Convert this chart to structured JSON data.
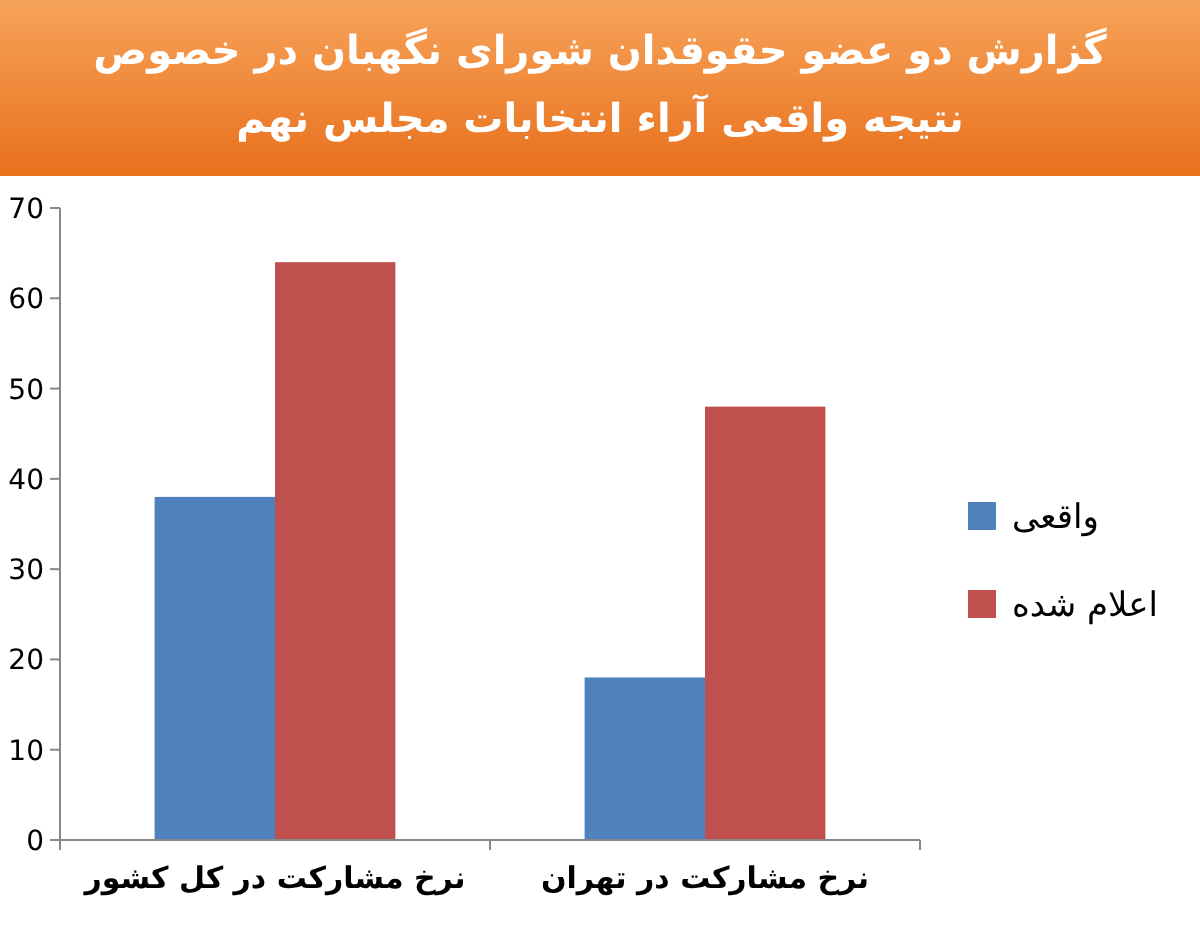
{
  "chart_data": {
    "type": "bar",
    "title": "گزارش دو عضو حقوقدان شورای نگهبان در خصوص نتیجه واقعی آراء انتخابات مجلس نهم",
    "categories": [
      "نرخ مشارکت در کل کشور",
      "نرخ مشارکت در تهران"
    ],
    "series": [
      {
        "name": "واقعی",
        "color": "#4f81bd",
        "values": [
          38,
          18
        ]
      },
      {
        "name": "اعلام شده",
        "color": "#c0504d",
        "values": [
          64,
          48
        ]
      }
    ],
    "ylim": [
      0,
      70
    ],
    "yticks": [
      0,
      10,
      20,
      30,
      40,
      50,
      60,
      70
    ],
    "legend": "right"
  }
}
